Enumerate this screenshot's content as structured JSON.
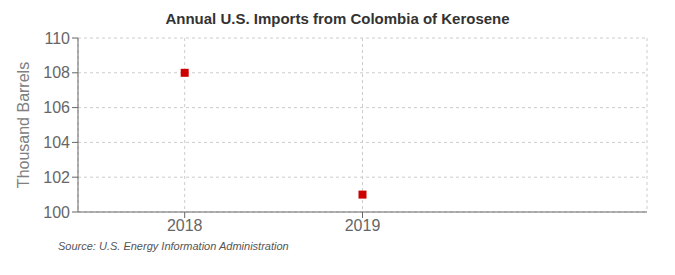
{
  "chart_data": {
    "type": "scatter",
    "title": "Annual U.S. Imports from Colombia of Kerosene",
    "ylabel": "Thousand Barrels",
    "annotations": [
      "Source: U.S. Energy Information Administration"
    ],
    "x": [
      2018,
      2019
    ],
    "values": [
      108,
      101
    ],
    "xlim": [
      2017.4,
      2020.6
    ],
    "ylim": [
      100,
      110
    ],
    "xticks": [
      2018,
      2019
    ],
    "yticks": [
      100,
      102,
      104,
      106,
      108,
      110
    ],
    "color": "#cc0000",
    "marker": "square",
    "grid": true
  }
}
